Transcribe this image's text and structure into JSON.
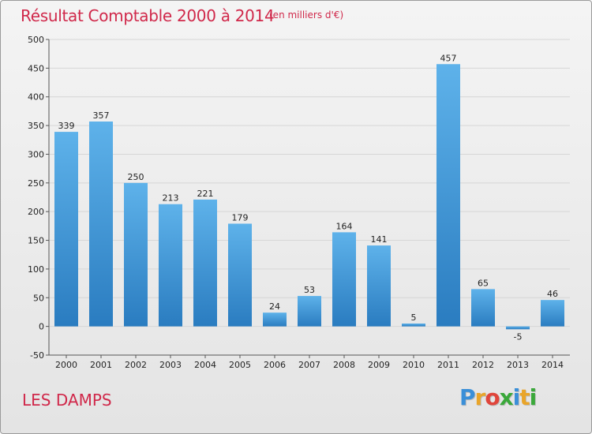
{
  "title": "Résultat Comptable 2000 à 2014",
  "subtitle": "(en milliers d'€)",
  "commune": "LES DAMPS",
  "logo": {
    "letters": [
      {
        "char": "P",
        "color": "#3a8fd8"
      },
      {
        "char": "r",
        "color": "#e9a52a"
      },
      {
        "char": "o",
        "color": "#e0453b"
      },
      {
        "char": "x",
        "color": "#3aa83a"
      },
      {
        "char": "i",
        "color": "#3a8fd8"
      },
      {
        "char": "t",
        "color": "#e9a52a"
      },
      {
        "char": "i",
        "color": "#3aa83a"
      }
    ]
  },
  "colors": {
    "title": "#d0284a",
    "bar_top": "#5eb2ea",
    "bar_bottom": "#2a7cc0",
    "grid": "#d6d6d6"
  },
  "chart_data": {
    "type": "bar",
    "categories": [
      "2000",
      "2001",
      "2002",
      "2003",
      "2004",
      "2005",
      "2006",
      "2007",
      "2008",
      "2009",
      "2010",
      "2011",
      "2012",
      "2013",
      "2014"
    ],
    "values": [
      339,
      357,
      250,
      213,
      221,
      179,
      24,
      53,
      164,
      141,
      5,
      457,
      65,
      -5,
      46
    ],
    "ylim": [
      -50,
      500
    ],
    "yticks": [
      -50,
      0,
      50,
      100,
      150,
      200,
      250,
      300,
      350,
      400,
      450,
      500
    ],
    "grid": true
  }
}
